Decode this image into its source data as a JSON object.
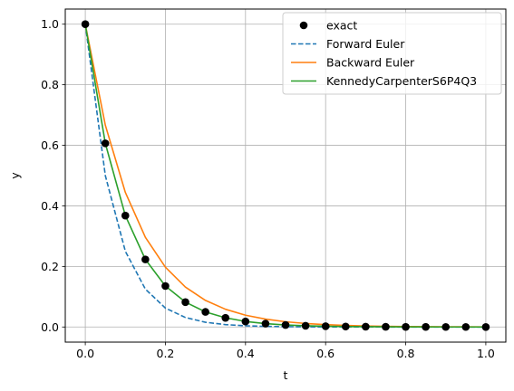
{
  "chart_data": {
    "type": "line",
    "title": "",
    "xlabel": "t",
    "ylabel": "y",
    "xlim": [
      -0.05,
      1.05
    ],
    "ylim": [
      -0.05,
      1.05
    ],
    "grid": true,
    "legend_position": "top-right",
    "xticks": [
      0.0,
      0.2,
      0.4,
      0.6,
      0.8,
      1.0
    ],
    "xtick_labels": [
      "0.0",
      "0.2",
      "0.4",
      "0.6",
      "0.8",
      "1.0"
    ],
    "yticks": [
      0.0,
      0.2,
      0.4,
      0.6,
      0.8,
      1.0
    ],
    "ytick_labels": [
      "0.0",
      "0.2",
      "0.4",
      "0.6",
      "0.8",
      "1.0"
    ],
    "x": [
      0.0,
      0.05,
      0.1,
      0.15,
      0.2,
      0.25,
      0.3,
      0.35,
      0.4,
      0.45,
      0.5,
      0.55,
      0.6,
      0.65,
      0.7,
      0.75,
      0.8,
      0.85,
      0.9,
      0.95,
      1.0
    ],
    "series": [
      {
        "name": "exact",
        "style": "markers",
        "color": "#000000",
        "values": [
          1.0,
          0.6065,
          0.3679,
          0.2231,
          0.1353,
          0.0821,
          0.0498,
          0.0302,
          0.0183,
          0.0111,
          0.0067,
          0.0041,
          0.0025,
          0.0015,
          0.0009,
          0.0006,
          0.0003,
          0.0002,
          0.0001,
          0.0001,
          0.0
        ]
      },
      {
        "name": "Forward Euler",
        "style": "dashed",
        "color": "#1f77b4",
        "values": [
          1.0,
          0.5,
          0.25,
          0.125,
          0.0625,
          0.0313,
          0.0156,
          0.0078,
          0.0039,
          0.002,
          0.001,
          0.0005,
          0.0002,
          0.0001,
          0.0001,
          0.0,
          0.0,
          0.0,
          0.0,
          0.0,
          0.0
        ]
      },
      {
        "name": "Backward Euler",
        "style": "solid",
        "color": "#ff7f0e",
        "values": [
          1.0,
          0.6667,
          0.4444,
          0.2963,
          0.1975,
          0.1317,
          0.0878,
          0.0585,
          0.039,
          0.026,
          0.0173,
          0.0116,
          0.0077,
          0.0051,
          0.0034,
          0.0023,
          0.0015,
          0.001,
          0.0007,
          0.0005,
          0.0003
        ]
      },
      {
        "name": "KennedyCarpenterS6P4Q3",
        "style": "solid",
        "color": "#2ca02c",
        "values": [
          1.0,
          0.6065,
          0.3679,
          0.2231,
          0.1353,
          0.0821,
          0.0498,
          0.0302,
          0.0183,
          0.0111,
          0.0067,
          0.0041,
          0.0025,
          0.0015,
          0.0009,
          0.0006,
          0.0003,
          0.0002,
          0.0001,
          0.0001,
          0.0
        ]
      }
    ]
  }
}
